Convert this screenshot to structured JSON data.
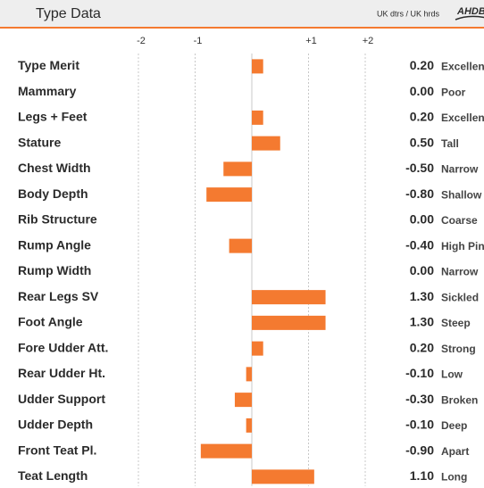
{
  "chart_data": {
    "type": "bar",
    "orientation": "horizontal",
    "title": "Type Data",
    "subtitle": "UK dtrs / UK hrds",
    "logo": "AHDB",
    "categories": [
      "Type Merit",
      "Mammary",
      "Legs + Feet",
      "Stature",
      "Chest Width",
      "Body Depth",
      "Rib Structure",
      "Rump Angle",
      "Rump Width",
      "Rear Legs SV",
      "Foot Angle",
      "Fore Udder Att.",
      "Rear Udder Ht.",
      "Udder Support",
      "Udder Depth",
      "Front Teat Pl.",
      "Teat Length"
    ],
    "values": [
      0.2,
      0,
      0.2,
      0.5,
      -0.5,
      -0.8,
      0,
      -0.4,
      0,
      1.3,
      1.3,
      0.2,
      -0.1,
      -0.3,
      -0.1,
      -0.9,
      1.1
    ],
    "value_labels": [
      "0.20",
      "0.00",
      "0.20",
      "0.50",
      "-0.50",
      "-0.80",
      "0.00",
      "-0.40",
      "0.00",
      "1.30",
      "1.30",
      "0.20",
      "-0.10",
      "-0.30",
      "-0.10",
      "-0.90",
      "1.10"
    ],
    "descriptors": [
      "Excellent",
      "Poor",
      "Excellent",
      "Tall",
      "Narrow",
      "Shallow",
      "Coarse",
      "High Pins",
      "Narrow",
      "Sickled",
      "Steep",
      "Strong",
      "Low",
      "Broken",
      "Deep",
      "Apart",
      "Long"
    ],
    "color": "#f47a30",
    "xlim": [
      -2,
      2
    ],
    "xticks": [
      -2,
      -1,
      {
        "value": 1,
        "label": "+1"
      },
      {
        "value": 2,
        "label": "+2"
      }
    ],
    "grid": true
  }
}
